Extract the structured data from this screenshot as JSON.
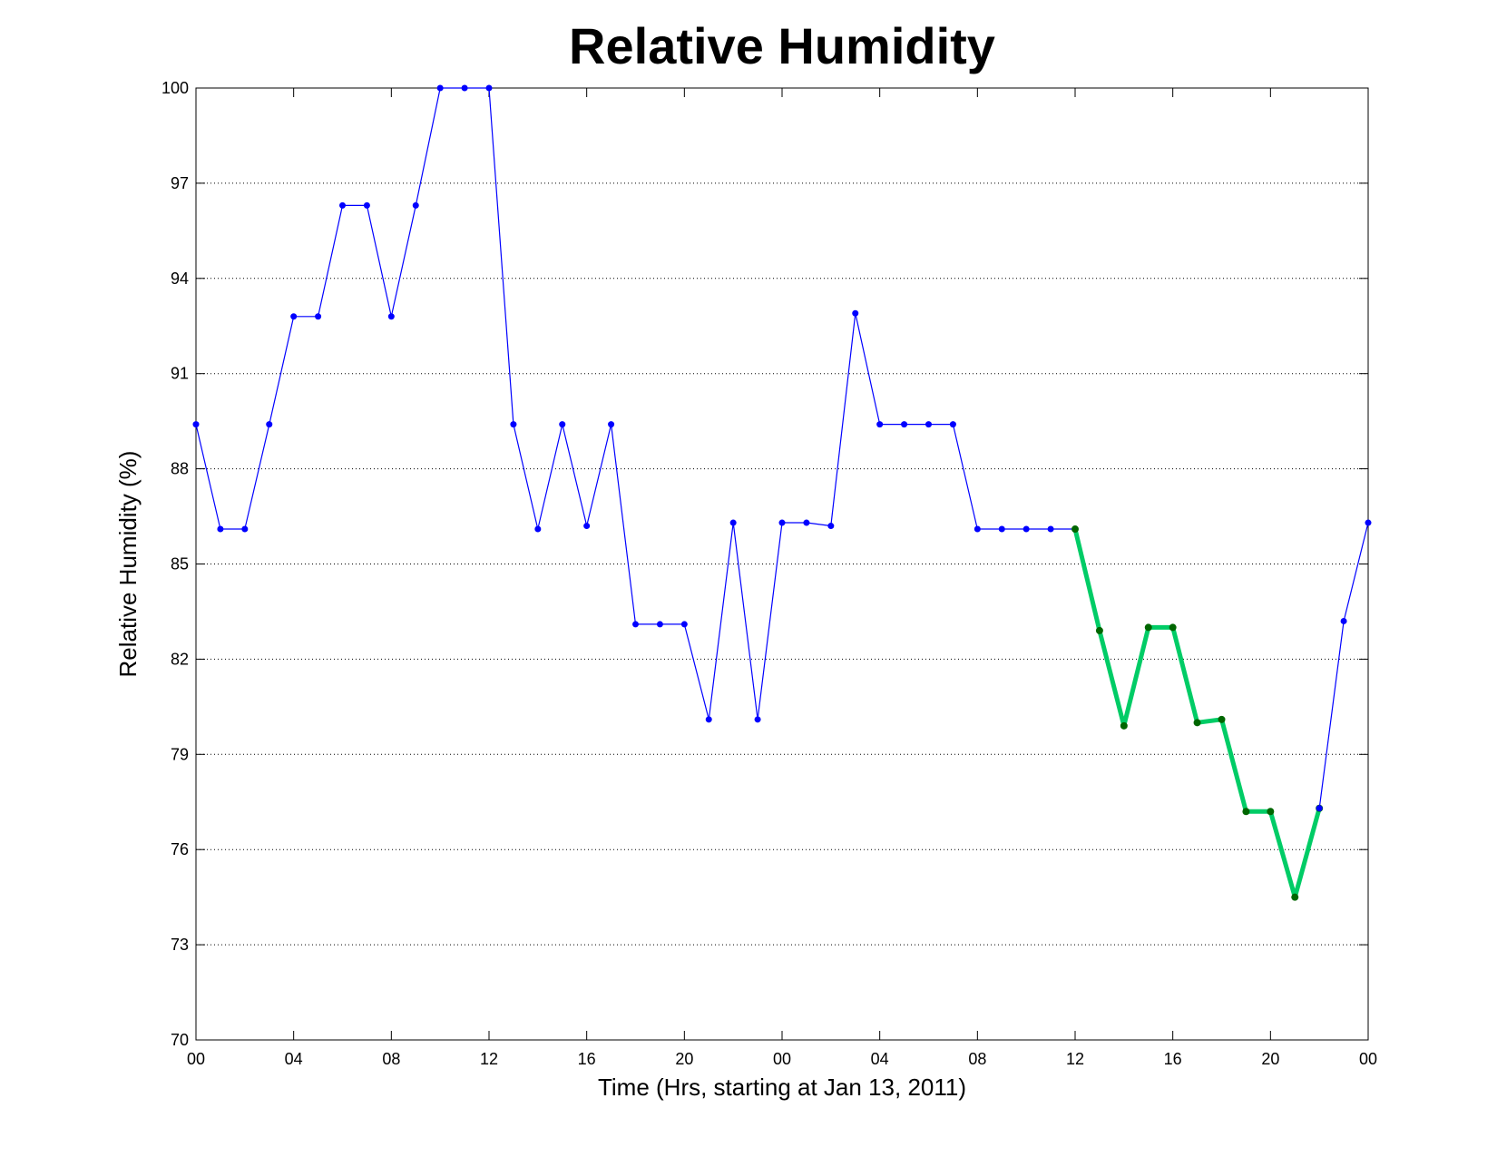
{
  "chart_data": {
    "type": "line",
    "title": "Relative Humidity",
    "xlabel": "Time (Hrs, starting at Jan 13, 2011)",
    "ylabel": "Relative Humidity (%)",
    "ylim": [
      70,
      100
    ],
    "yticks": [
      70,
      73,
      76,
      79,
      82,
      85,
      88,
      91,
      94,
      97,
      100
    ],
    "xlim": [
      0,
      48
    ],
    "xtick_labels": [
      "00",
      "04",
      "08",
      "12",
      "16",
      "20",
      "00",
      "04",
      "08",
      "12",
      "16",
      "20",
      "00"
    ],
    "grid": "horizontal-dotted",
    "series": [
      {
        "color": "#0000ff",
        "x": [
          0,
          1,
          2,
          3,
          4,
          5,
          6,
          7,
          8,
          9,
          10,
          11,
          12,
          13,
          14,
          15,
          16,
          17,
          18,
          19,
          20,
          21,
          22,
          23,
          24,
          25,
          26,
          27,
          28,
          29,
          30,
          31,
          32,
          33,
          34,
          35,
          36
        ],
        "values": [
          89.4,
          86.1,
          86.1,
          89.4,
          92.8,
          92.8,
          96.3,
          96.3,
          92.8,
          96.3,
          100,
          100,
          100,
          89.4,
          86.1,
          89.4,
          86.2,
          89.4,
          83.1,
          83.1,
          83.1,
          80.1,
          86.3,
          80.1,
          86.3,
          86.3,
          86.2,
          92.9,
          89.4,
          89.4,
          89.4,
          89.4,
          86.1,
          86.1,
          86.1,
          86.1,
          86.1
        ]
      },
      {
        "color": "#00cc66",
        "x": [
          36,
          37,
          38,
          39,
          40,
          41,
          42,
          43,
          44,
          45,
          46
        ],
        "values": [
          86.1,
          82.9,
          79.9,
          83.0,
          83.0,
          80.0,
          80.1,
          77.2,
          77.2,
          74.5,
          77.3
        ]
      },
      {
        "color": "#0000ff",
        "x": [
          46,
          47,
          48
        ],
        "values": [
          77.3,
          83.2,
          86.3
        ]
      }
    ]
  }
}
